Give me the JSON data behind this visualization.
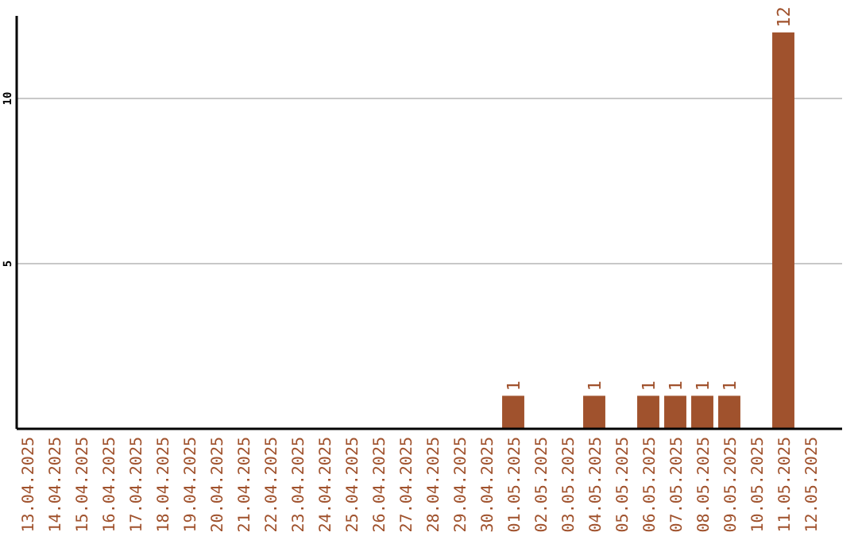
{
  "chart_data": {
    "type": "bar",
    "categories": [
      "13.04.2025",
      "14.04.2025",
      "15.04.2025",
      "16.04.2025",
      "17.04.2025",
      "18.04.2025",
      "19.04.2025",
      "20.04.2025",
      "21.04.2025",
      "22.04.2025",
      "23.04.2025",
      "24.04.2025",
      "25.04.2025",
      "26.04.2025",
      "27.04.2025",
      "28.04.2025",
      "29.04.2025",
      "30.04.2025",
      "01.05.2025",
      "02.05.2025",
      "03.05.2025",
      "04.05.2025",
      "05.05.2025",
      "06.05.2025",
      "07.05.2025",
      "08.05.2025",
      "09.05.2025",
      "10.05.2025",
      "11.05.2025",
      "12.05.2025"
    ],
    "values": [
      0,
      0,
      0,
      0,
      0,
      0,
      0,
      0,
      0,
      0,
      0,
      0,
      0,
      0,
      0,
      0,
      0,
      0,
      1,
      0,
      0,
      1,
      0,
      1,
      1,
      1,
      1,
      0,
      12,
      0
    ],
    "value_labels": [
      null,
      null,
      null,
      null,
      null,
      null,
      null,
      null,
      null,
      null,
      null,
      null,
      null,
      null,
      null,
      null,
      null,
      null,
      "1",
      null,
      null,
      "1",
      null,
      "1",
      "1",
      "1",
      "1",
      null,
      "12",
      null
    ],
    "color": "#a0522d",
    "ylim": [
      0,
      12.5
    ],
    "yticks": [
      5,
      10
    ],
    "grid": "y"
  }
}
